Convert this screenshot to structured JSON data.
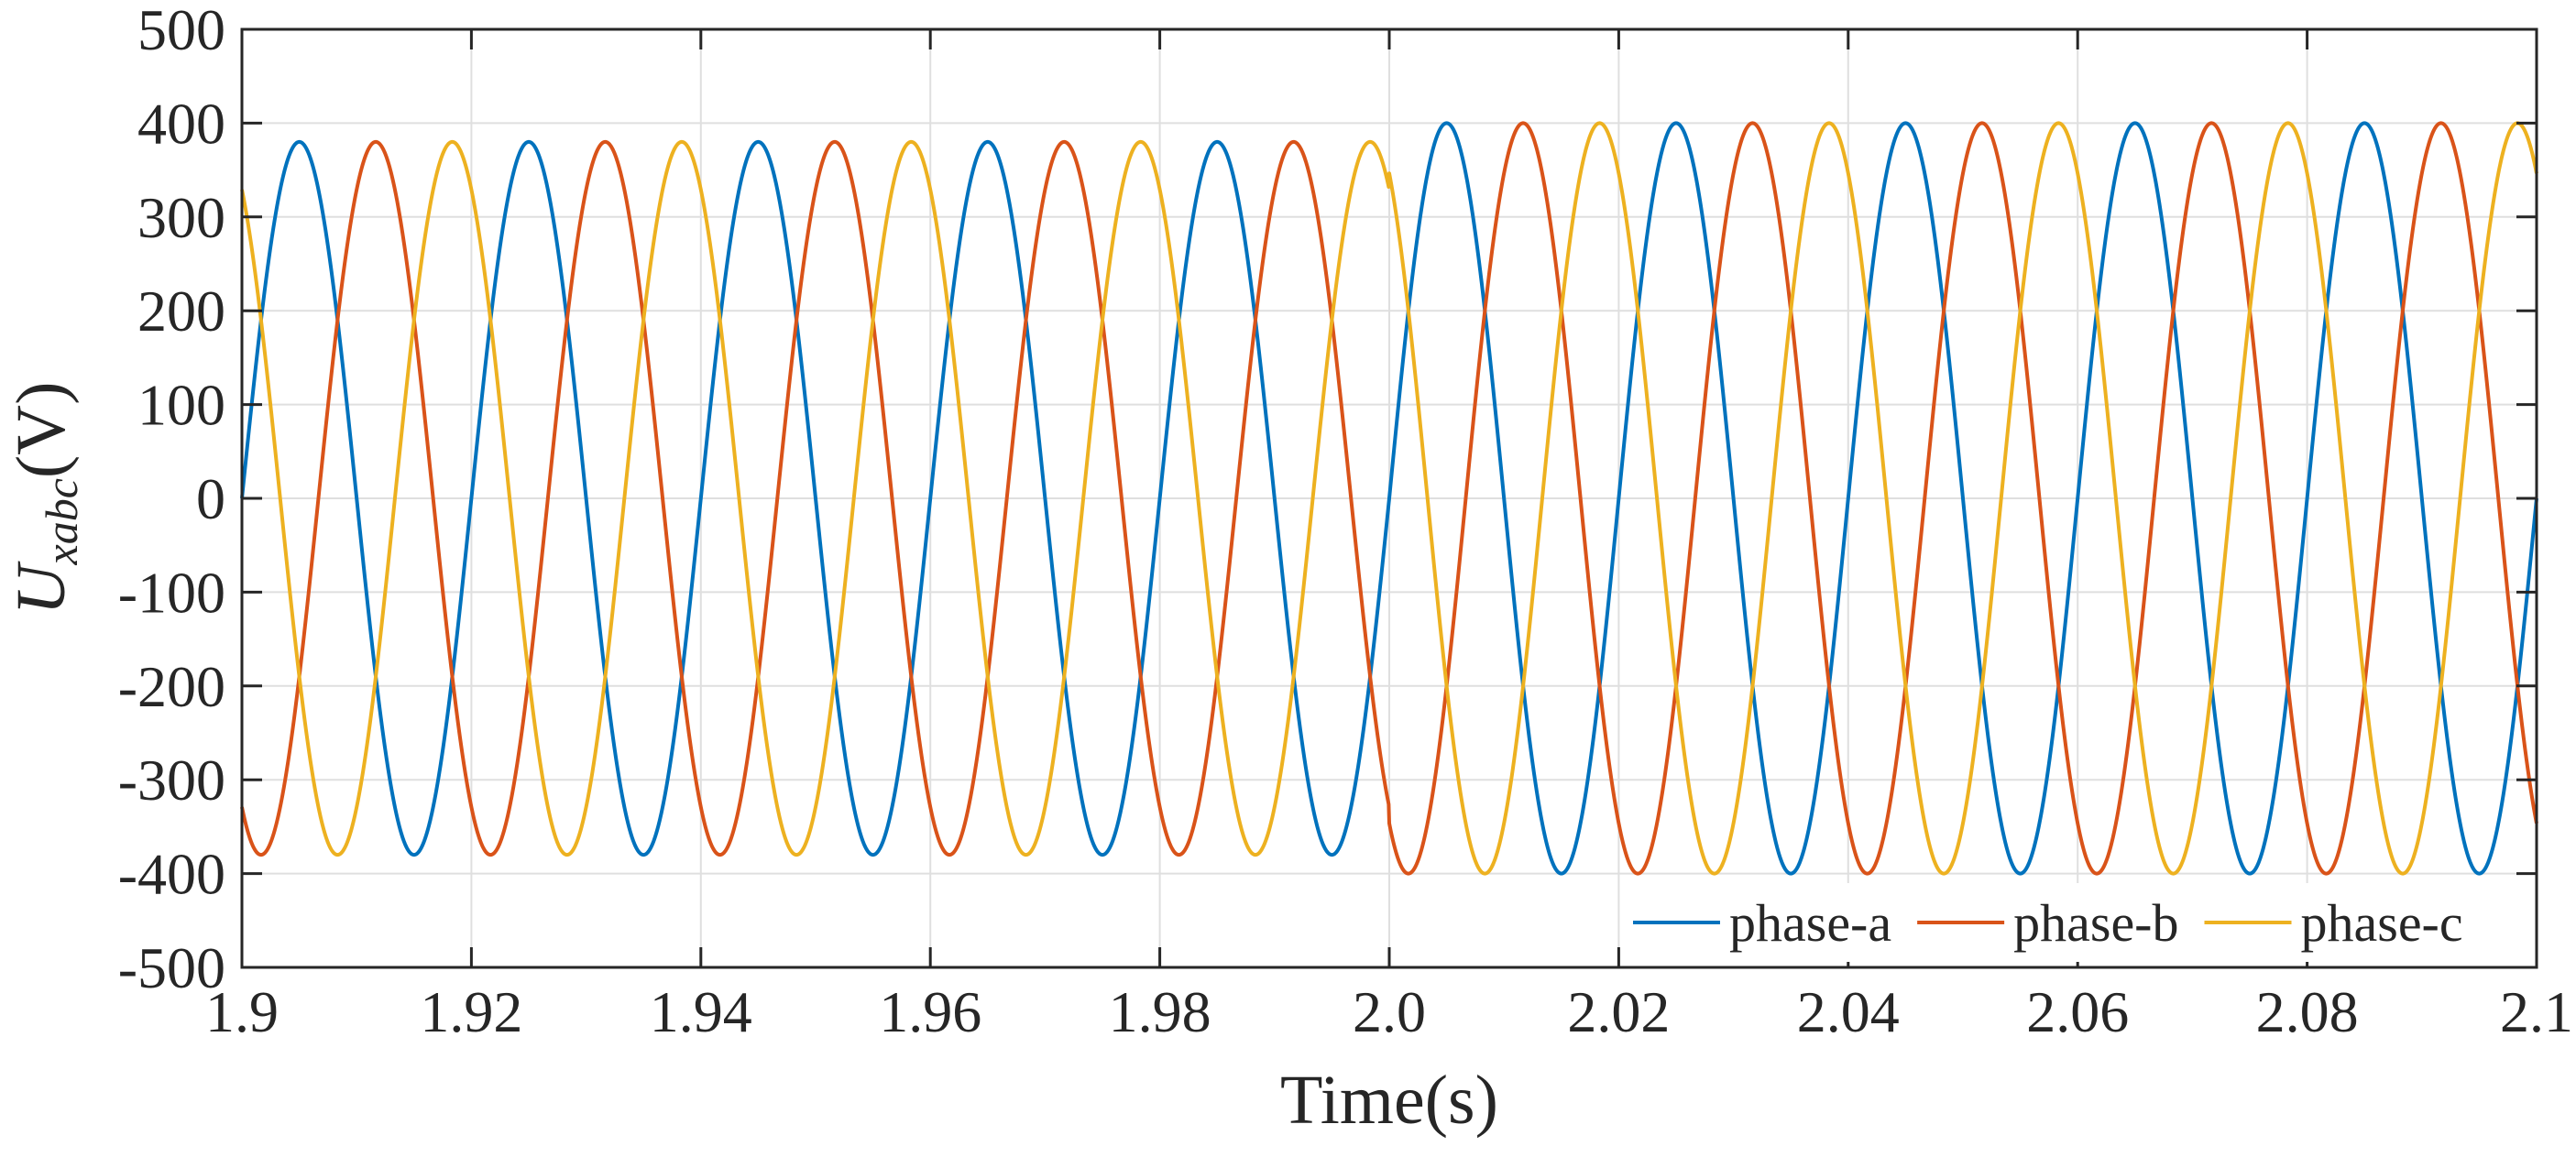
{
  "chart_data": {
    "type": "line",
    "title": "",
    "xlabel": "Time(s)",
    "ylabel": {
      "symbol": "U",
      "subscript": "xabc",
      "unit": "(V)"
    },
    "xlim": [
      1.9,
      2.1
    ],
    "ylim": [
      -500,
      500
    ],
    "xticks": [
      1.9,
      1.92,
      1.94,
      1.96,
      1.98,
      2.0,
      2.02,
      2.04,
      2.06,
      2.08,
      2.1
    ],
    "xtick_labels": [
      "1.9",
      "1.92",
      "1.94",
      "1.96",
      "1.98",
      "2.0",
      "2.02",
      "2.04",
      "2.06",
      "2.08",
      "2.1"
    ],
    "yticks": [
      -500,
      -400,
      -300,
      -200,
      -100,
      0,
      100,
      200,
      300,
      400,
      500
    ],
    "ytick_labels": [
      "-500",
      "-400",
      "-300",
      "-200",
      "-100",
      "0",
      "100",
      "200",
      "300",
      "400",
      "500"
    ],
    "grid": true,
    "legend_position": "bottom-right",
    "legend_layout": "horizontal",
    "signal": {
      "frequency_hz": 50,
      "phase_shift_deg": 120,
      "step_time_s": 2.0,
      "amplitude_before_v": 380,
      "amplitude_after_v": 400
    },
    "series": [
      {
        "name": "phase-a",
        "color": "#0072BD",
        "phase_deg": 0
      },
      {
        "name": "phase-b",
        "color": "#D95319",
        "phase_deg": -120
      },
      {
        "name": "phase-c",
        "color": "#EDB120",
        "phase_deg": 120
      }
    ]
  }
}
